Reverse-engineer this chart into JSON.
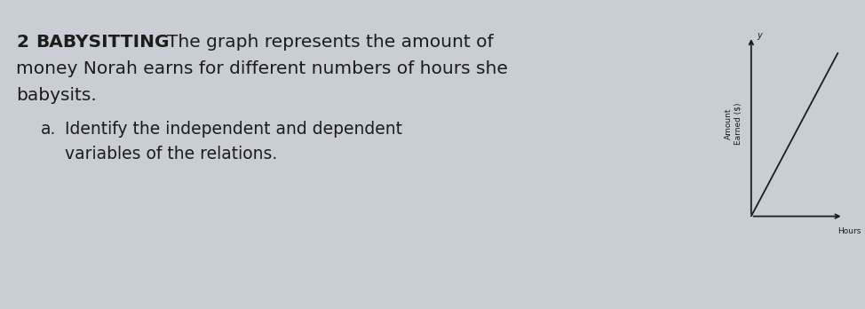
{
  "background_color": "#c9ced5",
  "number_text": "2",
  "bold_word": "BABYSITTING",
  "line1_rest": "The graph represents the amount of",
  "line2": "money Norah earns for different numbers of hours she",
  "line3": "babysits.",
  "sub_a": "a.",
  "sub_line1": "Identify the independent and dependent",
  "sub_line2": "variables of the relations.",
  "graph_ylabel_line1": "Amount",
  "graph_ylabel_line2": "Earned ($)",
  "graph_xlabel": "Hours",
  "graph_y_tick": "y",
  "text_color": "#1c1c1c",
  "graph_line_color": "#1c1c1c",
  "font_size_main": 14.5,
  "font_size_sub": 13.5,
  "font_size_graph_label": 6.5
}
